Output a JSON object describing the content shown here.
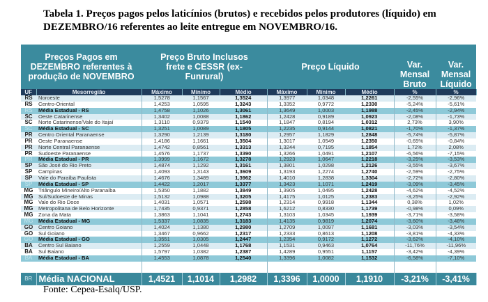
{
  "title": "Tabela 1. Preços pagos pelos laticínios (brutos) e recebidos pelos produtores (líquido) em DEZEMBRO/16 referentes ao leite entregue em NOVEMBRO/16.",
  "header": {
    "region": "Preços Pagos em DEZEMBRO referentes à produção de NOVEMBRO",
    "bruto": "Preço Bruto Inclusos frete e CESSR (ex-Funrural)",
    "liquido": "Preço Líquido",
    "var_bruto": "Var. Mensal Bruto",
    "var_liquido": "Var. Mensal Líquido"
  },
  "columns": [
    "UF",
    "Mesorregião",
    "Máximo",
    "Mínimo",
    "Médio",
    "Máximo",
    "Mínimo",
    "Médio",
    "%",
    "%"
  ],
  "rows": [
    {
      "t": "n",
      "c": [
        "RS",
        "Noroeste",
        "1,5278",
        "1,1567",
        "1,3524",
        "1,3977",
        "1,0348",
        "1,2261",
        "-2,55%",
        "-2,96%"
      ]
    },
    {
      "t": "n",
      "c": [
        "RS",
        "Centro-Oriental",
        "1,4253",
        "1,0595",
        "1,3243",
        "1,3352",
        "0,9772",
        "1,2330",
        "-5,24%",
        "-5,61%"
      ]
    },
    {
      "t": "a",
      "c": [
        "RS",
        "Média Estadual - RS",
        "1,4758",
        "1,1026",
        "1,3061",
        "1,3649",
        "1,0003",
        "1,1988",
        "-2,45%",
        "-2,94%"
      ]
    },
    {
      "t": "n",
      "c": [
        "SC",
        "Oeste Catarinense",
        "1,3402",
        "1,0088",
        "1,1862",
        "1,2428",
        "0,9189",
        "1,0923",
        "-2,08%",
        "-1,73%"
      ]
    },
    {
      "t": "n",
      "c": [
        "SC",
        "Norte Catarinense/Vale do Itajaí",
        "1,3110",
        "0,9379",
        "1,1540",
        "1,1847",
        "0,8194",
        "1,0312",
        "2,73%",
        "3,90%"
      ]
    },
    {
      "t": "a",
      "c": [
        "SC",
        "Média Estadual - SC",
        "1,3251",
        "1,0089",
        "1,1805",
        "1,2235",
        "0,9144",
        "1,0821",
        "-1,70%",
        "-1,37%"
      ]
    },
    {
      "t": "n",
      "c": [
        "PR",
        "Centro Oriental Paranaense",
        "1,3290",
        "1,2139",
        "1,3180",
        "1,2957",
        "1,1829",
        "1,2848",
        "-5,74%",
        "-5,87%"
      ]
    },
    {
      "t": "n",
      "c": [
        "PR",
        "Oeste Paranaense",
        "1,4186",
        "1,1661",
        "1,3504",
        "1,3017",
        "1,0549",
        "1,2350",
        "-0,65%",
        "-0,84%"
      ]
    },
    {
      "t": "n",
      "c": [
        "PR",
        "Norte Central Paranaense",
        "1,4742",
        "0,8561",
        "1,3313",
        "1,3244",
        "0,7195",
        "1,1854",
        "1,72%",
        "2,08%"
      ]
    },
    {
      "t": "n",
      "c": [
        "PR",
        "Sudoeste Paranaense",
        "1,4576",
        "1,1737",
        "1,3390",
        "1,3266",
        "1,0491",
        "1,2107",
        "-6,56%",
        "-7,15%"
      ]
    },
    {
      "t": "a",
      "c": [
        "PR",
        "Média Estadual - PR",
        "1,3999",
        "1,1672",
        "1,3278",
        "1,2923",
        "1,0647",
        "1,2218",
        "-3,25%",
        "-3,53%"
      ]
    },
    {
      "t": "n",
      "c": [
        "SP",
        "São José do Rio Preto",
        "1,4874",
        "1,1292",
        "1,3161",
        "1,3801",
        "1,0298",
        "1,2126",
        "-3,55%",
        "-3,67%"
      ]
    },
    {
      "t": "n",
      "c": [
        "SP",
        "Campinas",
        "1,4093",
        "1,3143",
        "1,3609",
        "1,3193",
        "1,2274",
        "1,2740",
        "-2,59%",
        "-2,75%"
      ]
    },
    {
      "t": "n",
      "c": [
        "SP",
        "Vale do Paraíba Paulista",
        "1,4676",
        "1,3489",
        "1,3962",
        "1,4010",
        "1,2838",
        "1,3304",
        "-2,72%",
        "-2,80%"
      ]
    },
    {
      "t": "a",
      "c": [
        "SP",
        "Média Estadual - SP",
        "1,4422",
        "1,2017",
        "1,3377",
        "1,3423",
        "1,1071",
        "1,2419",
        "-3,09%",
        "-3,45%"
      ]
    },
    {
      "t": "n",
      "c": [
        "MG",
        "Triângulo Mineiro/Alto Paranaíba",
        "1,5350",
        "1,1882",
        "1,3849",
        "1,3905",
        "1,0495",
        "1,2428",
        "-4,62%",
        "-4,52%"
      ]
    },
    {
      "t": "n",
      "c": [
        "MG",
        "Sul/Sudoeste de Minas",
        "1,5132",
        "1,0988",
        "1,3205",
        "1,4175",
        "1,0125",
        "1,2383",
        "-3,25%",
        "-2,92%"
      ]
    },
    {
      "t": "n",
      "c": [
        "MG",
        "Vale do Rio Doce",
        "1,4031",
        "1,0571",
        "1,2598",
        "1,2314",
        "0,9918",
        "1,1344",
        "0,38%",
        "1,02%"
      ]
    },
    {
      "t": "n",
      "c": [
        "MG",
        "Metropolitana de Belo Horizonte",
        "1,7435",
        "0,9371",
        "1,2858",
        "1,6212",
        "0,8330",
        "1,1739",
        "-0,98%",
        "0,09%"
      ]
    },
    {
      "t": "n",
      "c": [
        "MG",
        "Zona da Mata",
        "1,3863",
        "1,1041",
        "1,2743",
        "1,3103",
        "1,0345",
        "1,1939",
        "-3,71%",
        "-3,58%"
      ]
    },
    {
      "t": "a",
      "c": [
        "MG",
        "Média Estadual - MG",
        "1,5337",
        "1,0835",
        "1,3183",
        "1,4135",
        "0,9819",
        "1,2074",
        "-3,60%",
        "-3,48%"
      ]
    },
    {
      "t": "n",
      "c": [
        "GO",
        "Centro Goiano",
        "1,4024",
        "1,1380",
        "1,2980",
        "1,2709",
        "1,0097",
        "1,1681",
        "-3,03%",
        "-3,54%"
      ]
    },
    {
      "t": "n",
      "c": [
        "GO",
        "Sul Goiano",
        "1,3467",
        "0,9662",
        "1,2317",
        "1,2333",
        "0,8613",
        "1,1208",
        "-3,81%",
        "-4,33%"
      ]
    },
    {
      "t": "a",
      "c": [
        "GO",
        "Média Estadual - GO",
        "1,3551",
        "1,0305",
        "1,2447",
        "1,2354",
        "0,9172",
        "1,1272",
        "-3,62%",
        "-4,10%"
      ]
    },
    {
      "t": "n",
      "c": [
        "BA",
        "Centro Sul Baiano",
        "1,2559",
        "1,0448",
        "1,1768",
        "1,1531",
        "0,9463",
        "1,0764",
        "-11,76%",
        "-11,96%"
      ]
    },
    {
      "t": "n",
      "c": [
        "BA",
        "Sul Baiano",
        "1,5797",
        "1,0382",
        "1,2387",
        "1,4289",
        "0,9551",
        "1,1157",
        "-3,42%",
        "-4,39%"
      ]
    },
    {
      "t": "a",
      "c": [
        "BA",
        "Média Estadual - BA",
        "1,4553",
        "1,0878",
        "1,2540",
        "1,3396",
        "1,0082",
        "1,1532",
        "-6,58%",
        "-7,10%"
      ]
    }
  ],
  "national": [
    "BR",
    "Média NACIONAL",
    "1,4521",
    "1,1014",
    "1,2982",
    "1,3396",
    "1,0000",
    "1,1910",
    "-3,21%",
    "-3,41%"
  ],
  "footer": "Fonte: Cepea-Esalq/USP."
}
